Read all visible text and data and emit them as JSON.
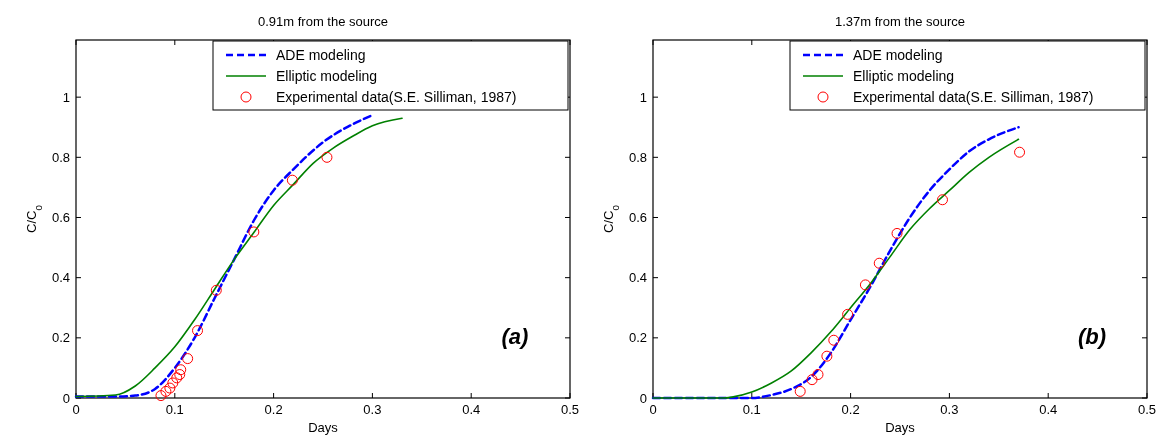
{
  "chart_data": [
    {
      "type": "line",
      "title": "0.91m from the source",
      "xlabel": "Days",
      "ylabel": "C/C$_{0}$",
      "annotations": [
        "(a)"
      ],
      "xlim": [
        0,
        0.5
      ],
      "ylim": [
        0,
        1.19
      ],
      "xticks": [
        0,
        0.1,
        0.2,
        0.3,
        0.4,
        0.5
      ],
      "yticks": [
        0,
        0.2,
        0.4,
        0.6,
        0.8,
        1
      ],
      "grid": false,
      "legend": "top right",
      "series": [
        {
          "name": "ADE modeling",
          "type": "line",
          "color": "#0000ff",
          "line_style": "dashed",
          "marker": "none",
          "x": [
            0,
            0.04,
            0.06,
            0.08,
            0.1,
            0.12,
            0.14,
            0.16,
            0.18,
            0.2,
            0.22,
            0.25,
            0.28,
            0.3
          ],
          "values": [
            0.005,
            0.005,
            0.008,
            0.03,
            0.1,
            0.2,
            0.33,
            0.46,
            0.59,
            0.69,
            0.76,
            0.85,
            0.91,
            0.94
          ]
        },
        {
          "name": "Elliptic modeling",
          "type": "line",
          "color": "#008000",
          "line_style": "solid",
          "marker": "none",
          "x": [
            0,
            0.04,
            0.06,
            0.08,
            0.1,
            0.12,
            0.14,
            0.16,
            0.18,
            0.2,
            0.22,
            0.24,
            0.26,
            0.28,
            0.3,
            0.33
          ],
          "values": [
            0.005,
            0.01,
            0.04,
            0.1,
            0.17,
            0.26,
            0.36,
            0.46,
            0.55,
            0.64,
            0.71,
            0.78,
            0.83,
            0.87,
            0.905,
            0.93
          ]
        },
        {
          "name": "Experimental data(S.E. Silliman, 1987)",
          "type": "scatter",
          "color": "#ff0000",
          "marker": "circle",
          "x": [
            0.086,
            0.091,
            0.095,
            0.098,
            0.102,
            0.105,
            0.106,
            0.113,
            0.123,
            0.142,
            0.18,
            0.219,
            0.254
          ],
          "values": [
            0.008,
            0.022,
            0.033,
            0.05,
            0.067,
            0.078,
            0.094,
            0.131,
            0.224,
            0.358,
            0.552,
            0.724,
            0.8
          ]
        }
      ]
    },
    {
      "type": "line",
      "title": "1.37m from the source",
      "xlabel": "Days",
      "ylabel": "C/C$_{0}$",
      "annotations": [
        "(b)"
      ],
      "xlim": [
        0,
        0.5
      ],
      "ylim": [
        0,
        1.19
      ],
      "xticks": [
        0,
        0.1,
        0.2,
        0.3,
        0.4,
        0.5
      ],
      "yticks": [
        0,
        0.2,
        0.4,
        0.6,
        0.8,
        1
      ],
      "grid": false,
      "legend": "top right",
      "series": [
        {
          "name": "ADE modeling",
          "type": "line",
          "color": "#0000ff",
          "line_style": "dashed",
          "marker": "none",
          "x": [
            0,
            0.1,
            0.12,
            0.14,
            0.16,
            0.18,
            0.2,
            0.22,
            0.24,
            0.26,
            0.28,
            0.3,
            0.32,
            0.34,
            0.37
          ],
          "values": [
            0,
            0,
            0.01,
            0.03,
            0.07,
            0.15,
            0.26,
            0.37,
            0.49,
            0.6,
            0.69,
            0.76,
            0.82,
            0.86,
            0.9
          ]
        },
        {
          "name": "Elliptic modeling",
          "type": "line",
          "color": "#008000",
          "line_style": "solid",
          "marker": "none",
          "x": [
            0,
            0.07,
            0.08,
            0.1,
            0.12,
            0.14,
            0.16,
            0.18,
            0.2,
            0.22,
            0.24,
            0.26,
            0.28,
            0.3,
            0.32,
            0.34,
            0.37
          ],
          "values": [
            0,
            0,
            0.003,
            0.02,
            0.05,
            0.09,
            0.15,
            0.22,
            0.3,
            0.38,
            0.47,
            0.56,
            0.63,
            0.69,
            0.75,
            0.8,
            0.86
          ]
        },
        {
          "name": "Experimental data(S.E. Silliman, 1987)",
          "type": "scatter",
          "color": "#ff0000",
          "marker": "circle",
          "x": [
            0.149,
            0.161,
            0.167,
            0.176,
            0.183,
            0.197,
            0.215,
            0.229,
            0.247,
            0.293,
            0.371
          ],
          "values": [
            0.022,
            0.061,
            0.078,
            0.139,
            0.192,
            0.278,
            0.376,
            0.448,
            0.547,
            0.659,
            0.817
          ]
        }
      ]
    }
  ]
}
